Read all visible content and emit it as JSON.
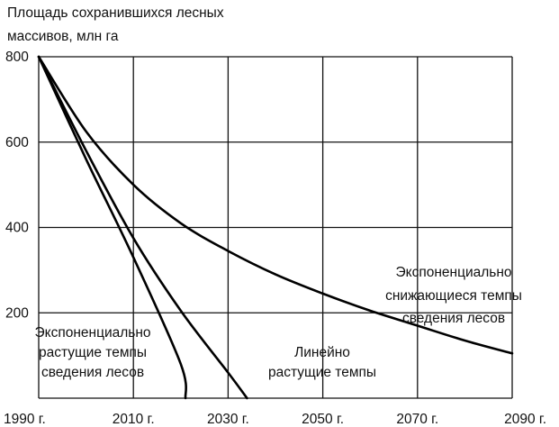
{
  "chart_data": {
    "type": "line",
    "title": "",
    "ylabel_lines": [
      "Площадь сохранившихся лесных",
      "массивов,  млн га"
    ],
    "xlabel": "",
    "xlim": [
      1990,
      2090
    ],
    "ylim": [
      0,
      800
    ],
    "x_ticks": [
      1990,
      2010,
      2030,
      2050,
      2070,
      2090
    ],
    "x_tick_labels": [
      "1990 г.",
      "2010 г.",
      "2030 г.",
      "2050 г.",
      "2070 г.",
      "2090 г."
    ],
    "y_ticks": [
      200,
      400,
      600,
      800
    ],
    "y_tick_labels": [
      "200",
      "400",
      "600",
      "800"
    ],
    "grid": true,
    "series": [
      {
        "id": "exp-decreasing",
        "label_lines": [
          "Экспоненциально",
          "снижающиеся темпы",
          "сведения лесов"
        ],
        "points": [
          [
            1990,
            800
          ],
          [
            2000,
            625
          ],
          [
            2010,
            500
          ],
          [
            2020,
            410
          ],
          [
            2030,
            345
          ],
          [
            2040,
            290
          ],
          [
            2050,
            245
          ],
          [
            2060,
            205
          ],
          [
            2070,
            170
          ],
          [
            2080,
            135
          ],
          [
            2090,
            105
          ]
        ]
      },
      {
        "id": "linear-increasing",
        "label_lines": [
          "Линейно",
          "растущие темпы"
        ],
        "points": [
          [
            1990,
            800
          ],
          [
            2000,
            580
          ],
          [
            2010,
            375
          ],
          [
            2020,
            205
          ],
          [
            2030,
            60
          ],
          [
            2034,
            0
          ]
        ]
      },
      {
        "id": "exp-increasing",
        "label_lines": [
          "Экспоненциально",
          "растущие темпы",
          "сведения лесов"
        ],
        "points": [
          [
            1990,
            800
          ],
          [
            2000,
            560
          ],
          [
            2010,
            330
          ],
          [
            2020,
            80
          ],
          [
            2021,
            0
          ]
        ]
      }
    ]
  }
}
